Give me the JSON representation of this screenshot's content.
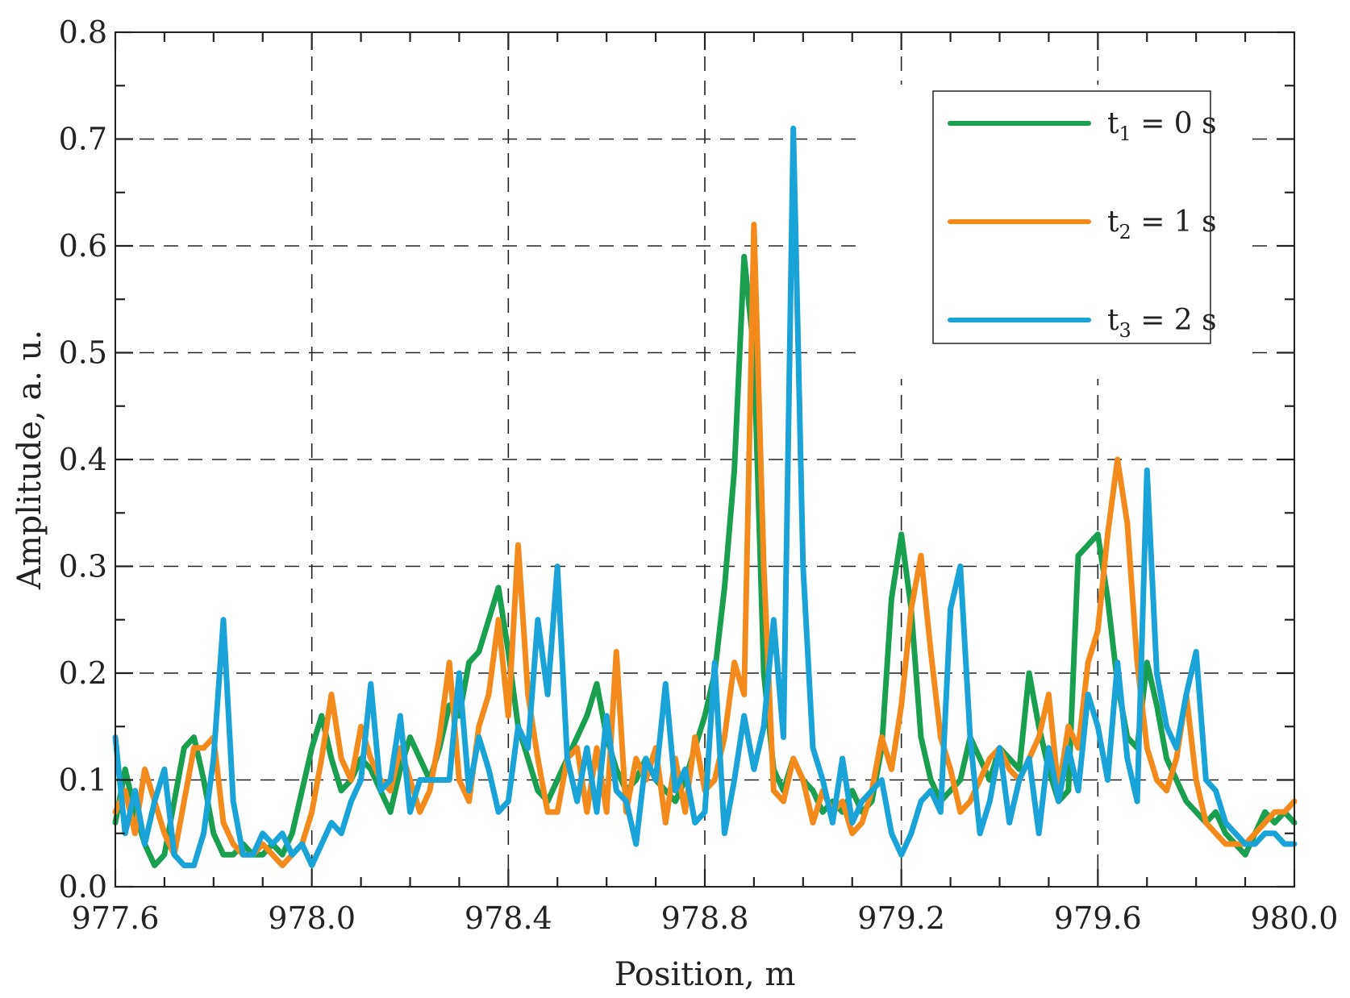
{
  "chart_data": {
    "type": "line",
    "xlabel": "Position, m",
    "ylabel": "Amplitude, a. u.",
    "xlim": [
      977.6,
      980.0
    ],
    "ylim": [
      0.0,
      0.8
    ],
    "xticks": [
      977.6,
      978.0,
      978.4,
      978.8,
      979.2,
      979.6,
      980.0
    ],
    "yticks": [
      0.0,
      0.1,
      0.2,
      0.3,
      0.4,
      0.5,
      0.6,
      0.7,
      0.8
    ],
    "xtick_labels": [
      "977.6",
      "978.0",
      "978.4",
      "978.8",
      "979.2",
      "979.6",
      "980.0"
    ],
    "ytick_labels": [
      "0.0",
      "0.1",
      "0.2",
      "0.3",
      "0.4",
      "0.5",
      "0.6",
      "0.7",
      "0.8"
    ],
    "grid": true,
    "legend_position": "top-right",
    "series": [
      {
        "name": "t1 = 0 s",
        "name_parts": {
          "base": "t",
          "sub": "1",
          "rest": " = 0 s"
        },
        "color": "#1a9e50",
        "x": [
          977.6,
          977.62,
          977.64,
          977.66,
          977.68,
          977.7,
          977.72,
          977.74,
          977.76,
          977.78,
          977.8,
          977.82,
          977.84,
          977.86,
          977.88,
          977.9,
          977.92,
          977.94,
          977.96,
          977.98,
          978.0,
          978.02,
          978.04,
          978.06,
          978.08,
          978.1,
          978.12,
          978.14,
          978.16,
          978.18,
          978.2,
          978.22,
          978.24,
          978.26,
          978.28,
          978.3,
          978.32,
          978.34,
          978.36,
          978.38,
          978.4,
          978.42,
          978.44,
          978.46,
          978.48,
          978.5,
          978.52,
          978.54,
          978.56,
          978.58,
          978.6,
          978.62,
          978.64,
          978.66,
          978.68,
          978.7,
          978.72,
          978.74,
          978.76,
          978.78,
          978.8,
          978.82,
          978.84,
          978.86,
          978.88,
          978.9,
          978.92,
          978.94,
          978.96,
          978.98,
          979.0,
          979.02,
          979.04,
          979.06,
          979.08,
          979.1,
          979.12,
          979.14,
          979.16,
          979.18,
          979.2,
          979.22,
          979.24,
          979.26,
          979.28,
          979.3,
          979.32,
          979.34,
          979.36,
          979.38,
          979.4,
          979.42,
          979.44,
          979.46,
          979.48,
          979.5,
          979.52,
          979.54,
          979.56,
          979.58,
          979.6,
          979.62,
          979.64,
          979.66,
          979.68,
          979.7,
          979.72,
          979.74,
          979.76,
          979.78,
          979.8,
          979.82,
          979.84,
          979.86,
          979.88,
          979.9,
          979.92,
          979.94,
          979.96,
          979.98,
          980.0
        ],
        "y": [
          0.06,
          0.11,
          0.07,
          0.04,
          0.02,
          0.03,
          0.08,
          0.13,
          0.14,
          0.1,
          0.05,
          0.03,
          0.03,
          0.04,
          0.03,
          0.03,
          0.04,
          0.03,
          0.05,
          0.09,
          0.13,
          0.16,
          0.12,
          0.09,
          0.1,
          0.12,
          0.11,
          0.09,
          0.07,
          0.11,
          0.14,
          0.12,
          0.1,
          0.13,
          0.17,
          0.16,
          0.21,
          0.22,
          0.25,
          0.28,
          0.22,
          0.15,
          0.12,
          0.09,
          0.08,
          0.1,
          0.12,
          0.14,
          0.16,
          0.19,
          0.14,
          0.11,
          0.09,
          0.1,
          0.12,
          0.1,
          0.09,
          0.08,
          0.1,
          0.13,
          0.16,
          0.2,
          0.28,
          0.39,
          0.59,
          0.5,
          0.2,
          0.11,
          0.09,
          0.12,
          0.1,
          0.09,
          0.07,
          0.08,
          0.07,
          0.09,
          0.07,
          0.08,
          0.13,
          0.27,
          0.33,
          0.26,
          0.14,
          0.1,
          0.08,
          0.09,
          0.1,
          0.14,
          0.12,
          0.1,
          0.13,
          0.12,
          0.11,
          0.2,
          0.15,
          0.11,
          0.08,
          0.09,
          0.31,
          0.32,
          0.33,
          0.27,
          0.19,
          0.14,
          0.13,
          0.21,
          0.17,
          0.12,
          0.1,
          0.08,
          0.07,
          0.06,
          0.07,
          0.05,
          0.04,
          0.03,
          0.05,
          0.07,
          0.06,
          0.07,
          0.06
        ]
      },
      {
        "name": "t2 = 1 s",
        "name_parts": {
          "base": "t",
          "sub": "2",
          "rest": " = 1 s"
        },
        "color": "#f28a1c",
        "x": [
          977.6,
          977.62,
          977.64,
          977.66,
          977.68,
          977.7,
          977.72,
          977.74,
          977.76,
          977.78,
          977.8,
          977.82,
          977.84,
          977.86,
          977.88,
          977.9,
          977.92,
          977.94,
          977.96,
          977.98,
          978.0,
          978.02,
          978.04,
          978.06,
          978.08,
          978.1,
          978.12,
          978.14,
          978.16,
          978.18,
          978.2,
          978.22,
          978.24,
          978.26,
          978.28,
          978.3,
          978.32,
          978.34,
          978.36,
          978.38,
          978.4,
          978.42,
          978.44,
          978.46,
          978.48,
          978.5,
          978.52,
          978.54,
          978.56,
          978.58,
          978.6,
          978.62,
          978.64,
          978.66,
          978.68,
          978.7,
          978.72,
          978.74,
          978.76,
          978.78,
          978.8,
          978.82,
          978.84,
          978.86,
          978.88,
          978.9,
          978.92,
          978.94,
          978.96,
          978.98,
          979.0,
          979.02,
          979.04,
          979.06,
          979.08,
          979.1,
          979.12,
          979.14,
          979.16,
          979.18,
          979.2,
          979.22,
          979.24,
          979.26,
          979.28,
          979.3,
          979.32,
          979.34,
          979.36,
          979.38,
          979.4,
          979.42,
          979.44,
          979.46,
          979.48,
          979.5,
          979.52,
          979.54,
          979.56,
          979.58,
          979.6,
          979.62,
          979.64,
          979.66,
          979.68,
          979.7,
          979.72,
          979.74,
          979.76,
          979.78,
          979.8,
          979.82,
          979.84,
          979.86,
          979.88,
          979.9,
          979.92,
          979.94,
          979.96,
          979.98,
          980.0
        ],
        "y": [
          0.07,
          0.09,
          0.05,
          0.11,
          0.08,
          0.05,
          0.03,
          0.08,
          0.13,
          0.13,
          0.14,
          0.06,
          0.04,
          0.03,
          0.03,
          0.04,
          0.03,
          0.02,
          0.03,
          0.04,
          0.07,
          0.12,
          0.18,
          0.12,
          0.1,
          0.15,
          0.12,
          0.1,
          0.09,
          0.13,
          0.1,
          0.07,
          0.09,
          0.14,
          0.21,
          0.1,
          0.08,
          0.15,
          0.18,
          0.25,
          0.16,
          0.32,
          0.18,
          0.12,
          0.07,
          0.07,
          0.12,
          0.13,
          0.07,
          0.13,
          0.07,
          0.22,
          0.07,
          0.12,
          0.1,
          0.13,
          0.06,
          0.12,
          0.07,
          0.14,
          0.09,
          0.1,
          0.14,
          0.21,
          0.18,
          0.62,
          0.3,
          0.09,
          0.08,
          0.12,
          0.1,
          0.06,
          0.09,
          0.07,
          0.08,
          0.05,
          0.06,
          0.09,
          0.14,
          0.11,
          0.17,
          0.26,
          0.31,
          0.22,
          0.14,
          0.11,
          0.07,
          0.08,
          0.1,
          0.12,
          0.13,
          0.11,
          0.1,
          0.12,
          0.14,
          0.18,
          0.09,
          0.15,
          0.13,
          0.21,
          0.24,
          0.33,
          0.4,
          0.34,
          0.21,
          0.13,
          0.1,
          0.09,
          0.12,
          0.18,
          0.1,
          0.06,
          0.05,
          0.04,
          0.04,
          0.04,
          0.05,
          0.06,
          0.07,
          0.07,
          0.08
        ]
      },
      {
        "name": "t3 = 2 s",
        "name_parts": {
          "base": "t",
          "sub": "3",
          "rest": " = 2 s"
        },
        "color": "#1aa3d6",
        "x": [
          977.6,
          977.62,
          977.64,
          977.66,
          977.68,
          977.7,
          977.72,
          977.74,
          977.76,
          977.78,
          977.8,
          977.82,
          977.84,
          977.86,
          977.88,
          977.9,
          977.92,
          977.94,
          977.96,
          977.98,
          978.0,
          978.02,
          978.04,
          978.06,
          978.08,
          978.1,
          978.12,
          978.14,
          978.16,
          978.18,
          978.2,
          978.22,
          978.24,
          978.26,
          978.28,
          978.3,
          978.32,
          978.34,
          978.36,
          978.38,
          978.4,
          978.42,
          978.44,
          978.46,
          978.48,
          978.5,
          978.52,
          978.54,
          978.56,
          978.58,
          978.6,
          978.62,
          978.64,
          978.66,
          978.68,
          978.7,
          978.72,
          978.74,
          978.76,
          978.78,
          978.8,
          978.82,
          978.84,
          978.86,
          978.88,
          978.9,
          978.92,
          978.94,
          978.96,
          978.98,
          979.0,
          979.02,
          979.04,
          979.06,
          979.08,
          979.1,
          979.12,
          979.14,
          979.16,
          979.18,
          979.2,
          979.22,
          979.24,
          979.26,
          979.28,
          979.3,
          979.32,
          979.34,
          979.36,
          979.38,
          979.4,
          979.42,
          979.44,
          979.46,
          979.48,
          979.5,
          979.52,
          979.54,
          979.56,
          979.58,
          979.6,
          979.62,
          979.64,
          979.66,
          979.68,
          979.7,
          979.72,
          979.74,
          979.76,
          979.78,
          979.8,
          979.82,
          979.84,
          979.86,
          979.88,
          979.9,
          979.92,
          979.94,
          979.96,
          979.98,
          980.0
        ],
        "y": [
          0.14,
          0.05,
          0.09,
          0.04,
          0.08,
          0.11,
          0.03,
          0.02,
          0.02,
          0.05,
          0.12,
          0.25,
          0.08,
          0.03,
          0.03,
          0.05,
          0.04,
          0.05,
          0.03,
          0.04,
          0.02,
          0.04,
          0.06,
          0.05,
          0.08,
          0.1,
          0.19,
          0.09,
          0.1,
          0.16,
          0.07,
          0.1,
          0.1,
          0.1,
          0.1,
          0.2,
          0.09,
          0.14,
          0.11,
          0.07,
          0.08,
          0.15,
          0.13,
          0.25,
          0.18,
          0.3,
          0.12,
          0.08,
          0.13,
          0.07,
          0.16,
          0.09,
          0.08,
          0.04,
          0.12,
          0.1,
          0.19,
          0.09,
          0.11,
          0.06,
          0.07,
          0.21,
          0.05,
          0.1,
          0.16,
          0.11,
          0.15,
          0.25,
          0.14,
          0.71,
          0.3,
          0.13,
          0.1,
          0.06,
          0.12,
          0.06,
          0.08,
          0.09,
          0.1,
          0.05,
          0.03,
          0.05,
          0.08,
          0.09,
          0.07,
          0.26,
          0.3,
          0.14,
          0.05,
          0.08,
          0.13,
          0.06,
          0.1,
          0.12,
          0.05,
          0.13,
          0.08,
          0.13,
          0.09,
          0.18,
          0.15,
          0.1,
          0.21,
          0.12,
          0.08,
          0.39,
          0.2,
          0.15,
          0.13,
          0.18,
          0.22,
          0.1,
          0.09,
          0.06,
          0.05,
          0.04,
          0.04,
          0.05,
          0.05,
          0.04,
          0.04
        ]
      }
    ]
  }
}
